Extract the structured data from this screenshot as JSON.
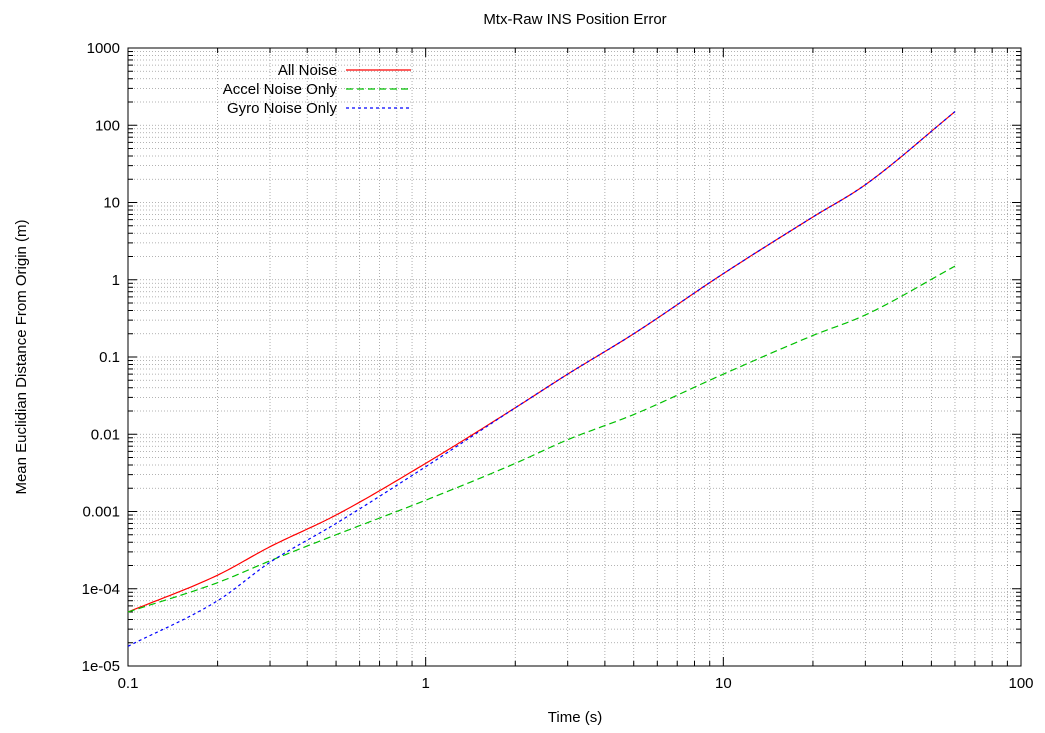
{
  "chart_data": {
    "type": "line",
    "title": "Mtx-Raw INS Position Error",
    "xlabel": "Time (s)",
    "ylabel": "Mean Euclidian Distance From Origin (m)",
    "x_scale": "log",
    "y_scale": "log",
    "xlim": [
      0.1,
      100
    ],
    "ylim": [
      1e-05,
      1000
    ],
    "x_ticks": [
      "0.1",
      "1",
      "10",
      "100"
    ],
    "y_ticks": [
      "1e-05",
      "1e-04",
      "0.001",
      "0.01",
      "0.1",
      "1",
      "10",
      "100",
      "1000"
    ],
    "grid": true,
    "legend_position": "top-left",
    "series": [
      {
        "name": "All Noise",
        "color": "#ff0000",
        "dash": "solid",
        "x": [
          0.1,
          0.2,
          0.3,
          0.5,
          1,
          2,
          3,
          5,
          10,
          20,
          30,
          60
        ],
        "y": [
          5e-05,
          0.00015,
          0.00035,
          0.0009,
          0.0042,
          0.022,
          0.06,
          0.2,
          1.2,
          6.5,
          17,
          150
        ]
      },
      {
        "name": "Accel Noise Only",
        "color": "#00c000",
        "dash": "dashed",
        "x": [
          0.1,
          0.2,
          0.3,
          0.5,
          1,
          2,
          3,
          5,
          10,
          20,
          30,
          60
        ],
        "y": [
          5e-05,
          0.00012,
          0.00023,
          0.0005,
          0.0014,
          0.0042,
          0.0085,
          0.018,
          0.06,
          0.19,
          0.35,
          1.5
        ]
      },
      {
        "name": "Gyro Noise Only",
        "color": "#0000ff",
        "dash": "dotted",
        "x": [
          0.1,
          0.2,
          0.3,
          0.5,
          1,
          2,
          3,
          5,
          10,
          20,
          30,
          60
        ],
        "y": [
          1.8e-05,
          7e-05,
          0.00022,
          0.0007,
          0.0038,
          0.022,
          0.06,
          0.2,
          1.2,
          6.5,
          17,
          150
        ]
      }
    ]
  }
}
